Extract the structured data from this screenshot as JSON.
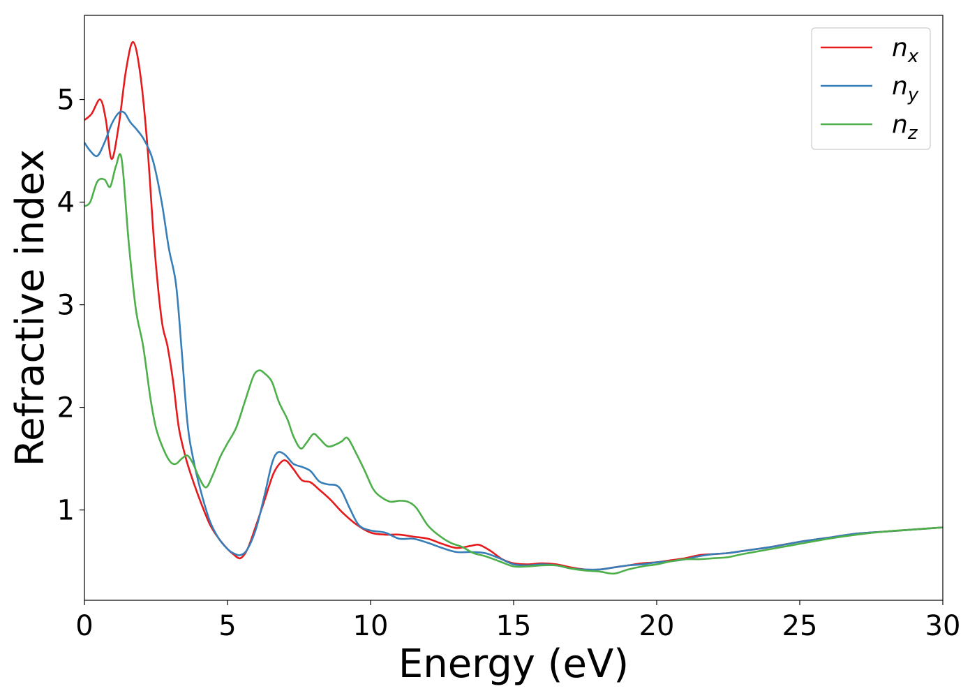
{
  "chart_data": {
    "type": "line",
    "title": "",
    "xlabel": "Energy (eV)",
    "ylabel": "Refractive index",
    "xlim": [
      0,
      30
    ],
    "ylim": [
      0.12,
      5.82
    ],
    "xticks": [
      0,
      5,
      10,
      15,
      20,
      25,
      30
    ],
    "yticks": [
      1,
      2,
      3,
      4,
      5
    ],
    "grid": false,
    "legend_position": "top-right",
    "series": [
      {
        "name": "n",
        "sub": "x",
        "color": "#e41a1c",
        "x": [
          0,
          0.25,
          0.55,
          0.75,
          0.95,
          1.2,
          1.45,
          1.7,
          1.95,
          2.2,
          2.45,
          2.7,
          2.9,
          3.1,
          3.3,
          3.55,
          3.8,
          4.1,
          4.4,
          4.7,
          5.0,
          5.2,
          5.45,
          5.7,
          6.0,
          6.3,
          6.6,
          6.85,
          7.05,
          7.3,
          7.6,
          7.9,
          8.2,
          8.6,
          9.0,
          9.5,
          10.0,
          10.5,
          11.0,
          11.5,
          12.0,
          12.5,
          13.0,
          13.5,
          13.8,
          14.2,
          14.6,
          15.0,
          15.5,
          16.0,
          16.5,
          17.0,
          17.5,
          18.0,
          18.5,
          19.0,
          19.5,
          20.0,
          20.5,
          21.0,
          21.5,
          22.0,
          22.5,
          23.0,
          23.5,
          24.0,
          25.0,
          26.0,
          27.0,
          28.0,
          29.0,
          30.0
        ],
        "y": [
          4.8,
          4.86,
          5.0,
          4.8,
          4.42,
          4.75,
          5.28,
          5.56,
          5.25,
          4.55,
          3.55,
          2.85,
          2.6,
          2.25,
          1.8,
          1.5,
          1.28,
          1.05,
          0.85,
          0.72,
          0.62,
          0.57,
          0.53,
          0.62,
          0.85,
          1.1,
          1.35,
          1.46,
          1.48,
          1.4,
          1.29,
          1.27,
          1.2,
          1.1,
          0.98,
          0.86,
          0.78,
          0.76,
          0.76,
          0.74,
          0.72,
          0.67,
          0.63,
          0.65,
          0.66,
          0.6,
          0.52,
          0.48,
          0.47,
          0.48,
          0.47,
          0.44,
          0.42,
          0.42,
          0.44,
          0.46,
          0.48,
          0.49,
          0.51,
          0.53,
          0.56,
          0.57,
          0.58,
          0.6,
          0.62,
          0.64,
          0.69,
          0.73,
          0.77,
          0.79,
          0.81,
          0.83
        ]
      },
      {
        "name": "n",
        "sub": "y",
        "color": "#377eb8",
        "x": [
          0,
          0.2,
          0.45,
          0.7,
          0.95,
          1.2,
          1.4,
          1.6,
          1.85,
          2.1,
          2.4,
          2.7,
          2.95,
          3.2,
          3.4,
          3.6,
          3.8,
          4.1,
          4.4,
          4.7,
          5.0,
          5.2,
          5.45,
          5.7,
          6.0,
          6.3,
          6.55,
          6.75,
          7.0,
          7.3,
          7.6,
          7.9,
          8.2,
          8.5,
          8.8,
          9.0,
          9.3,
          9.6,
          10.0,
          10.5,
          11.0,
          11.5,
          12.0,
          12.5,
          13.0,
          13.5,
          14.0,
          14.5,
          15.0,
          15.5,
          16.0,
          16.5,
          17.0,
          17.5,
          18.0,
          18.5,
          19.0,
          19.5,
          20.0,
          20.5,
          21.0,
          21.5,
          22.0,
          22.5,
          23.0,
          24.0,
          25.0,
          26.0,
          27.0,
          28.0,
          29.0,
          30.0
        ],
        "y": [
          4.58,
          4.5,
          4.45,
          4.58,
          4.76,
          4.87,
          4.87,
          4.78,
          4.7,
          4.6,
          4.4,
          4.0,
          3.55,
          3.2,
          2.55,
          1.85,
          1.5,
          1.15,
          0.88,
          0.72,
          0.62,
          0.58,
          0.56,
          0.62,
          0.82,
          1.15,
          1.45,
          1.56,
          1.54,
          1.45,
          1.42,
          1.38,
          1.28,
          1.25,
          1.24,
          1.18,
          1.0,
          0.85,
          0.8,
          0.78,
          0.72,
          0.72,
          0.68,
          0.63,
          0.59,
          0.59,
          0.58,
          0.53,
          0.47,
          0.46,
          0.47,
          0.46,
          0.43,
          0.42,
          0.42,
          0.44,
          0.46,
          0.47,
          0.49,
          0.5,
          0.52,
          0.55,
          0.57,
          0.58,
          0.6,
          0.64,
          0.69,
          0.73,
          0.77,
          0.79,
          0.81,
          0.83
        ]
      },
      {
        "name": "n",
        "sub": "z",
        "color": "#4daf4a",
        "x": [
          0,
          0.2,
          0.45,
          0.7,
          0.9,
          1.1,
          1.3,
          1.55,
          1.8,
          2.05,
          2.3,
          2.5,
          2.75,
          3.0,
          3.2,
          3.4,
          3.6,
          3.8,
          4.0,
          4.25,
          4.5,
          4.75,
          5.0,
          5.3,
          5.6,
          5.9,
          6.1,
          6.3,
          6.55,
          6.8,
          7.1,
          7.3,
          7.55,
          7.75,
          8.0,
          8.2,
          8.5,
          8.8,
          9.0,
          9.2,
          9.5,
          9.8,
          10.1,
          10.4,
          10.7,
          11.0,
          11.3,
          11.6,
          12.0,
          12.4,
          12.8,
          13.2,
          13.6,
          14.0,
          14.5,
          15.0,
          15.5,
          16.0,
          16.5,
          17.0,
          17.5,
          18.0,
          18.5,
          19.0,
          19.5,
          20.0,
          20.5,
          21.0,
          21.5,
          22.0,
          22.5,
          23.0,
          24.0,
          25.0,
          26.0,
          27.0,
          28.0,
          29.0,
          30.0
        ],
        "y": [
          3.96,
          4.0,
          4.2,
          4.22,
          4.15,
          4.35,
          4.42,
          3.6,
          2.95,
          2.6,
          2.1,
          1.8,
          1.6,
          1.47,
          1.45,
          1.5,
          1.53,
          1.45,
          1.32,
          1.22,
          1.35,
          1.52,
          1.65,
          1.8,
          2.05,
          2.3,
          2.36,
          2.33,
          2.25,
          2.05,
          1.88,
          1.72,
          1.6,
          1.65,
          1.74,
          1.7,
          1.62,
          1.64,
          1.67,
          1.7,
          1.55,
          1.38,
          1.2,
          1.12,
          1.08,
          1.09,
          1.08,
          1.02,
          0.85,
          0.75,
          0.68,
          0.64,
          0.58,
          0.55,
          0.5,
          0.45,
          0.45,
          0.46,
          0.46,
          0.43,
          0.41,
          0.4,
          0.38,
          0.42,
          0.45,
          0.47,
          0.5,
          0.52,
          0.52,
          0.53,
          0.54,
          0.57,
          0.62,
          0.67,
          0.72,
          0.76,
          0.79,
          0.81,
          0.83
        ]
      }
    ]
  }
}
